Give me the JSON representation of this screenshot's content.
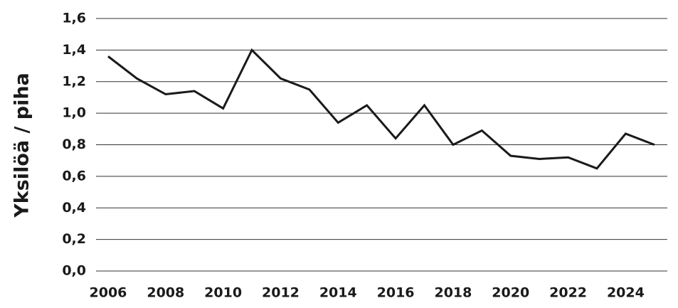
{
  "chart_data": {
    "type": "line",
    "y_label": "Yksilöä / piha",
    "x": [
      2006,
      2007,
      2008,
      2009,
      2010,
      2011,
      2012,
      2013,
      2014,
      2015,
      2016,
      2017,
      2018,
      2019,
      2020,
      2021,
      2022,
      2023,
      2024,
      2025
    ],
    "series": [
      {
        "color": "#1a1a1a",
        "values": [
          1.36,
          1.22,
          1.12,
          1.14,
          1.03,
          1.4,
          1.22,
          1.15,
          0.94,
          1.05,
          0.84,
          1.05,
          0.8,
          0.89,
          0.73,
          0.71,
          0.72,
          0.65,
          0.87,
          0.8
        ]
      }
    ],
    "xlim": [
      2005.58,
      2025.45
    ],
    "xticks": [
      2006,
      2008,
      2010,
      2012,
      2014,
      2016,
      2018,
      2020,
      2022,
      2024
    ],
    "ylim": [
      0,
      1.6
    ],
    "yticks": [
      {
        "value": 0,
        "label": "0,0"
      },
      {
        "value": 0.2,
        "label": "0,2"
      },
      {
        "value": 0.4,
        "label": "0,4"
      },
      {
        "value": 0.6,
        "label": "0,6"
      },
      {
        "value": 0.8,
        "label": "0,8"
      },
      {
        "value": 1.0,
        "label": "1,0"
      },
      {
        "value": 1.2,
        "label": "1,2"
      },
      {
        "value": 1.4,
        "label": "1,4"
      },
      {
        "value": 1.6,
        "label": "1,6"
      }
    ],
    "grid": true
  }
}
